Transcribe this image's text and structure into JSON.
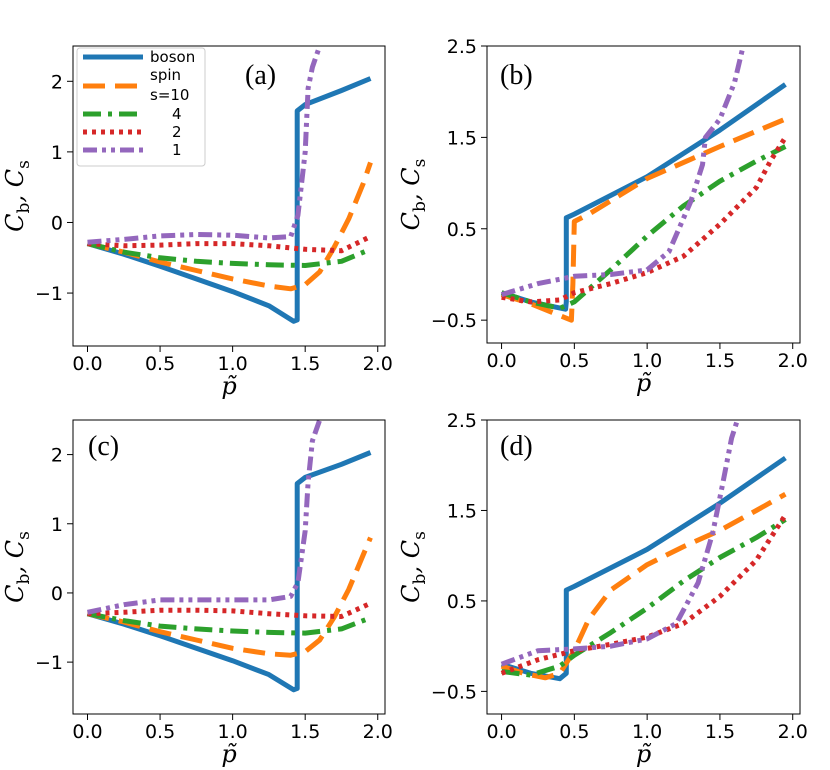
{
  "chart_data": [
    {
      "type": "line",
      "panel_label": "(a)",
      "xlabel": "p̃",
      "ylabel": [
        "C",
        "b",
        ",  C",
        "s"
      ],
      "xlim": [
        -0.1,
        2.05
      ],
      "ylim": [
        -1.75,
        2.5
      ],
      "xticks": [
        0.0,
        0.5,
        1.0,
        1.5,
        2.0
      ],
      "xtick_labels": [
        "0.0",
        "0.5",
        "1.0",
        "1.5",
        "2.0"
      ],
      "yticks": [
        -1,
        0,
        1,
        2
      ],
      "ytick_labels": [
        "−1",
        "0",
        "1",
        "2"
      ],
      "legend": {
        "placement": "top-left",
        "entries": [
          "boson",
          "spin",
          "s=10",
          "4",
          "2",
          "1"
        ]
      },
      "series": [
        {
          "name": "boson",
          "x": [
            0,
            0.25,
            0.5,
            0.75,
            1.0,
            1.25,
            1.42,
            1.445,
            1.445,
            1.5,
            1.75,
            1.95
          ],
          "y": [
            -0.3,
            -0.45,
            -0.62,
            -0.8,
            -0.98,
            -1.18,
            -1.4,
            -1.38,
            1.58,
            1.67,
            1.87,
            2.04
          ]
        },
        {
          "name": "s=10",
          "x": [
            0,
            0.25,
            0.5,
            0.75,
            1.0,
            1.25,
            1.4,
            1.5,
            1.6,
            1.7,
            1.8,
            1.9,
            1.95
          ],
          "y": [
            -0.3,
            -0.42,
            -0.56,
            -0.68,
            -0.8,
            -0.9,
            -0.94,
            -0.88,
            -0.7,
            -0.35,
            0.05,
            0.55,
            0.85
          ]
        },
        {
          "name": "4",
          "x": [
            0,
            0.25,
            0.5,
            0.75,
            1.0,
            1.25,
            1.5,
            1.75,
            1.95
          ],
          "y": [
            -0.3,
            -0.42,
            -0.5,
            -0.55,
            -0.58,
            -0.6,
            -0.61,
            -0.55,
            -0.38
          ]
        },
        {
          "name": "2",
          "x": [
            0,
            0.25,
            0.5,
            0.75,
            1.0,
            1.25,
            1.5,
            1.75,
            1.95
          ],
          "y": [
            -0.3,
            -0.33,
            -0.32,
            -0.3,
            -0.3,
            -0.33,
            -0.38,
            -0.4,
            -0.2
          ]
        },
        {
          "name": "1",
          "x": [
            0,
            0.25,
            0.5,
            0.75,
            1.0,
            1.25,
            1.4,
            1.45,
            1.5,
            1.52,
            1.55,
            1.6
          ],
          "y": [
            -0.28,
            -0.24,
            -0.19,
            -0.17,
            -0.18,
            -0.22,
            -0.2,
            0.1,
            1.0,
            1.9,
            2.2,
            2.5
          ]
        }
      ]
    },
    {
      "type": "line",
      "panel_label": "(b)",
      "xlabel": "p̃",
      "ylabel": [
        "C",
        "b",
        ",  C",
        "s"
      ],
      "xlim": [
        -0.1,
        2.05
      ],
      "ylim": [
        -0.75,
        2.5
      ],
      "xticks": [
        0.0,
        0.5,
        1.0,
        1.5,
        2.0
      ],
      "xtick_labels": [
        "0.0",
        "0.5",
        "1.0",
        "1.5",
        "2.0"
      ],
      "yticks": [
        -0.5,
        0.5,
        1.5,
        2.5
      ],
      "ytick_labels": [
        "−0.5",
        "0.5",
        "1.5",
        "2.5"
      ],
      "series": [
        {
          "name": "boson",
          "x": [
            0,
            0.2,
            0.44,
            0.445,
            0.445,
            0.5,
            1.0,
            1.5,
            1.95
          ],
          "y": [
            -0.2,
            -0.3,
            -0.38,
            -0.3,
            0.62,
            0.66,
            1.07,
            1.58,
            2.08
          ]
        },
        {
          "name": "s=10",
          "x": [
            0,
            0.2,
            0.4,
            0.48,
            0.49,
            0.5,
            0.6,
            1.0,
            1.5,
            1.95
          ],
          "y": [
            -0.22,
            -0.32,
            -0.45,
            -0.5,
            -0.1,
            0.58,
            0.66,
            1.05,
            1.4,
            1.7
          ]
        },
        {
          "name": "4",
          "x": [
            0,
            0.2,
            0.4,
            0.5,
            0.75,
            1.0,
            1.25,
            1.5,
            1.75,
            1.95
          ],
          "y": [
            -0.2,
            -0.3,
            -0.37,
            -0.3,
            0.05,
            0.42,
            0.75,
            1.02,
            1.24,
            1.4
          ]
        },
        {
          "name": "2",
          "x": [
            0,
            0.2,
            0.4,
            0.5,
            0.75,
            1.0,
            1.25,
            1.5,
            1.75,
            1.85,
            1.95
          ],
          "y": [
            -0.25,
            -0.3,
            -0.28,
            -0.2,
            -0.1,
            0.02,
            0.2,
            0.55,
            0.95,
            1.25,
            1.5
          ]
        },
        {
          "name": "1",
          "x": [
            0,
            0.25,
            0.5,
            0.75,
            1.0,
            1.15,
            1.3,
            1.38,
            1.4,
            1.5,
            1.6,
            1.66
          ],
          "y": [
            -0.22,
            -0.1,
            -0.02,
            0.0,
            0.05,
            0.25,
            0.8,
            1.2,
            1.5,
            1.7,
            2.1,
            2.5
          ]
        }
      ]
    },
    {
      "type": "line",
      "panel_label": "(c)",
      "xlabel": "p̃",
      "ylabel": [
        "C",
        "b",
        ",  C",
        "s"
      ],
      "xlim": [
        -0.1,
        2.05
      ],
      "ylim": [
        -1.75,
        2.5
      ],
      "xticks": [
        0.0,
        0.5,
        1.0,
        1.5,
        2.0
      ],
      "xtick_labels": [
        "0.0",
        "0.5",
        "1.0",
        "1.5",
        "2.0"
      ],
      "yticks": [
        -1,
        0,
        1,
        2
      ],
      "ytick_labels": [
        "−1",
        "0",
        "1",
        "2"
      ],
      "series": [
        {
          "name": "boson",
          "x": [
            0,
            0.25,
            0.5,
            0.75,
            1.0,
            1.25,
            1.42,
            1.445,
            1.445,
            1.5,
            1.75,
            1.95
          ],
          "y": [
            -0.3,
            -0.45,
            -0.62,
            -0.8,
            -0.98,
            -1.18,
            -1.4,
            -1.38,
            1.58,
            1.67,
            1.86,
            2.03
          ]
        },
        {
          "name": "s=10",
          "x": [
            0,
            0.25,
            0.5,
            0.75,
            1.0,
            1.25,
            1.4,
            1.5,
            1.6,
            1.7,
            1.8,
            1.9,
            1.95
          ],
          "y": [
            -0.3,
            -0.42,
            -0.56,
            -0.68,
            -0.8,
            -0.88,
            -0.9,
            -0.85,
            -0.68,
            -0.35,
            0.05,
            0.55,
            0.8
          ]
        },
        {
          "name": "4",
          "x": [
            0,
            0.25,
            0.5,
            0.75,
            1.0,
            1.25,
            1.5,
            1.75,
            1.95
          ],
          "y": [
            -0.3,
            -0.4,
            -0.48,
            -0.52,
            -0.55,
            -0.57,
            -0.58,
            -0.52,
            -0.36
          ]
        },
        {
          "name": "2",
          "x": [
            0,
            0.25,
            0.5,
            0.75,
            1.0,
            1.25,
            1.5,
            1.75,
            1.95
          ],
          "y": [
            -0.3,
            -0.28,
            -0.25,
            -0.25,
            -0.26,
            -0.3,
            -0.33,
            -0.34,
            -0.15
          ]
        },
        {
          "name": "1",
          "x": [
            0,
            0.25,
            0.5,
            0.75,
            1.0,
            1.25,
            1.4,
            1.45,
            1.5,
            1.52,
            1.55,
            1.6
          ],
          "y": [
            -0.28,
            -0.17,
            -0.1,
            -0.1,
            -0.1,
            -0.1,
            -0.05,
            0.15,
            0.9,
            1.6,
            2.2,
            2.5
          ]
        }
      ]
    },
    {
      "type": "line",
      "panel_label": "(d)",
      "xlabel": "p̃",
      "ylabel": [
        "C",
        "b",
        ",  C",
        "s"
      ],
      "xlim": [
        -0.1,
        2.05
      ],
      "ylim": [
        -0.75,
        2.5
      ],
      "xticks": [
        0.0,
        0.5,
        1.0,
        1.5,
        2.0
      ],
      "xtick_labels": [
        "0.0",
        "0.5",
        "1.0",
        "1.5",
        "2.0"
      ],
      "yticks": [
        -0.5,
        0.5,
        1.5,
        2.5
      ],
      "ytick_labels": [
        "−0.5",
        "0.5",
        "1.5",
        "2.5"
      ],
      "series": [
        {
          "name": "boson",
          "x": [
            0,
            0.2,
            0.4,
            0.445,
            0.445,
            0.5,
            1.0,
            1.5,
            1.95
          ],
          "y": [
            -0.2,
            -0.3,
            -0.36,
            -0.3,
            0.62,
            0.66,
            1.07,
            1.58,
            2.08
          ]
        },
        {
          "name": "s=10",
          "x": [
            0,
            0.15,
            0.3,
            0.4,
            0.5,
            0.6,
            0.75,
            1.0,
            1.25,
            1.5,
            1.75,
            1.95
          ],
          "y": [
            -0.22,
            -0.3,
            -0.35,
            -0.3,
            -0.05,
            0.3,
            0.62,
            0.9,
            1.1,
            1.28,
            1.5,
            1.68
          ]
        },
        {
          "name": "4",
          "x": [
            0,
            0.2,
            0.4,
            0.5,
            0.75,
            1.0,
            1.25,
            1.5,
            1.75,
            1.95
          ],
          "y": [
            -0.28,
            -0.32,
            -0.22,
            -0.1,
            0.15,
            0.42,
            0.72,
            0.98,
            1.2,
            1.4
          ]
        },
        {
          "name": "2",
          "x": [
            0,
            0.25,
            0.5,
            0.75,
            1.0,
            1.25,
            1.5,
            1.75,
            1.95
          ],
          "y": [
            -0.3,
            -0.15,
            -0.05,
            0.02,
            0.1,
            0.25,
            0.55,
            0.95,
            1.45
          ]
        },
        {
          "name": "1",
          "x": [
            0,
            0.25,
            0.5,
            0.75,
            1.0,
            1.2,
            1.35,
            1.45,
            1.52,
            1.58,
            1.62
          ],
          "y": [
            -0.2,
            -0.05,
            -0.03,
            0.0,
            0.08,
            0.25,
            0.7,
            1.25,
            1.8,
            2.3,
            2.5
          ]
        }
      ]
    }
  ],
  "styles": {
    "boson": {
      "color": "#1f77b4",
      "dash": ""
    },
    "s=10": {
      "color": "#ff7f0e",
      "dash": "22 10"
    },
    "4": {
      "color": "#2ca02c",
      "dash": "18 7 4 7"
    },
    "2": {
      "color": "#d62728",
      "dash": "4 5"
    },
    "1": {
      "color": "#9467bd",
      "dash": "14 5 4 5 4 5"
    }
  }
}
